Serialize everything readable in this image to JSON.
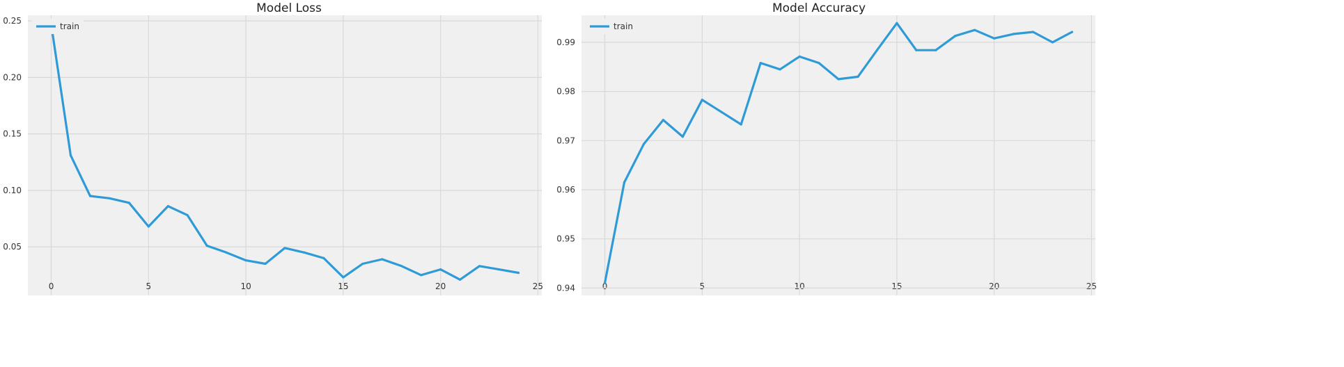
{
  "colors": {
    "series": "#2e9bd7",
    "plot_background": "#f0f0f0",
    "grid": "#d9d9d9"
  },
  "chart_data": [
    {
      "type": "line",
      "title": "Model Loss",
      "xlabel": "",
      "ylabel": "",
      "xlim": [
        -1.2,
        25.2
      ],
      "ylim": [
        0.007,
        0.255
      ],
      "xticks": [
        0,
        5,
        10,
        15,
        20,
        25
      ],
      "yticks": [
        0.05,
        0.1,
        0.15,
        0.2,
        0.25
      ],
      "ytick_labels": [
        "0.05",
        "0.10",
        "0.15",
        "0.20",
        "0.25"
      ],
      "grid": true,
      "legend": {
        "position": "top-left",
        "entries": [
          "train"
        ]
      },
      "series": [
        {
          "name": "train",
          "x": [
            0,
            1,
            2,
            3,
            4,
            5,
            6,
            7,
            8,
            9,
            10,
            11,
            12,
            13,
            14,
            15,
            16,
            17,
            18,
            19,
            20,
            21,
            22,
            23,
            24
          ],
          "y": [
            0.247,
            0.131,
            0.095,
            0.093,
            0.089,
            0.068,
            0.086,
            0.078,
            0.051,
            0.045,
            0.038,
            0.035,
            0.049,
            0.045,
            0.04,
            0.023,
            0.035,
            0.039,
            0.033,
            0.025,
            0.03,
            0.021,
            0.033,
            0.03,
            0.027
          ]
        }
      ]
    },
    {
      "type": "line",
      "title": "Model Accuracy",
      "xlabel": "",
      "ylabel": "",
      "xlim": [
        -1.2,
        25.2
      ],
      "ylim": [
        0.9385,
        0.9955
      ],
      "xticks": [
        0,
        5,
        10,
        15,
        20,
        25
      ],
      "yticks": [
        0.94,
        0.95,
        0.96,
        0.97,
        0.98,
        0.99
      ],
      "ytick_labels": [
        "0.94",
        "0.95",
        "0.96",
        "0.97",
        "0.98",
        "0.99"
      ],
      "grid": true,
      "legend": {
        "position": "top-left",
        "entries": [
          "train"
        ]
      },
      "series": [
        {
          "name": "train",
          "x": [
            0,
            1,
            2,
            3,
            4,
            5,
            6,
            7,
            8,
            9,
            10,
            11,
            12,
            13,
            14,
            15,
            16,
            17,
            18,
            19,
            20,
            21,
            22,
            23,
            24
          ],
          "y": [
            0.941,
            0.9615,
            0.9693,
            0.9742,
            0.9708,
            0.9783,
            0.9758,
            0.9733,
            0.9858,
            0.9845,
            0.9871,
            0.9858,
            0.9825,
            0.983,
            0.9885,
            0.9939,
            0.9884,
            0.9884,
            0.9913,
            0.9925,
            0.9908,
            0.9917,
            0.9921,
            0.99,
            0.9921
          ]
        }
      ]
    }
  ]
}
